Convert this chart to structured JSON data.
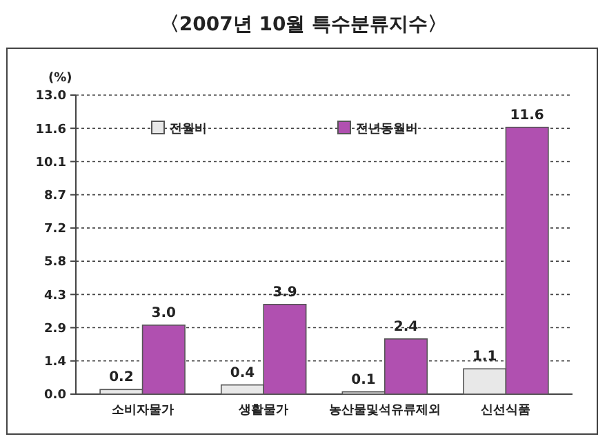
{
  "chart_data": {
    "type": "bar",
    "title": "〈2007년 10월 특수분류지수〉",
    "ylabel": "(%)",
    "categories": [
      "소비자물가",
      "생활물가",
      "농산물및석유류제외",
      "신선식품"
    ],
    "series": [
      {
        "name": "전월비",
        "color": "#e8e8e8",
        "values": [
          0.2,
          0.4,
          0.1,
          1.1
        ],
        "value_labels": [
          "0.2",
          "0.4",
          "0.1",
          "1.1"
        ]
      },
      {
        "name": "전년동월비",
        "color": "#b050b0",
        "values": [
          3.0,
          3.9,
          2.4,
          11.6
        ],
        "value_labels": [
          "3.0",
          "3.9",
          "2.4",
          "11.6"
        ]
      }
    ],
    "ylim": [
      0,
      13
    ],
    "yticks": [
      {
        "value": 0,
        "label": "0.0"
      },
      {
        "value": 1.444,
        "label": "1.4"
      },
      {
        "value": 2.889,
        "label": "2.9"
      },
      {
        "value": 4.333,
        "label": "4.3"
      },
      {
        "value": 5.778,
        "label": "5.8"
      },
      {
        "value": 7.222,
        "label": "7.2"
      },
      {
        "value": 8.667,
        "label": "8.7"
      },
      {
        "value": 10.111,
        "label": "10.1"
      },
      {
        "value": 11.556,
        "label": "11.6"
      },
      {
        "value": 13,
        "label": "13.0"
      }
    ],
    "grid": "y",
    "legend": "top"
  }
}
